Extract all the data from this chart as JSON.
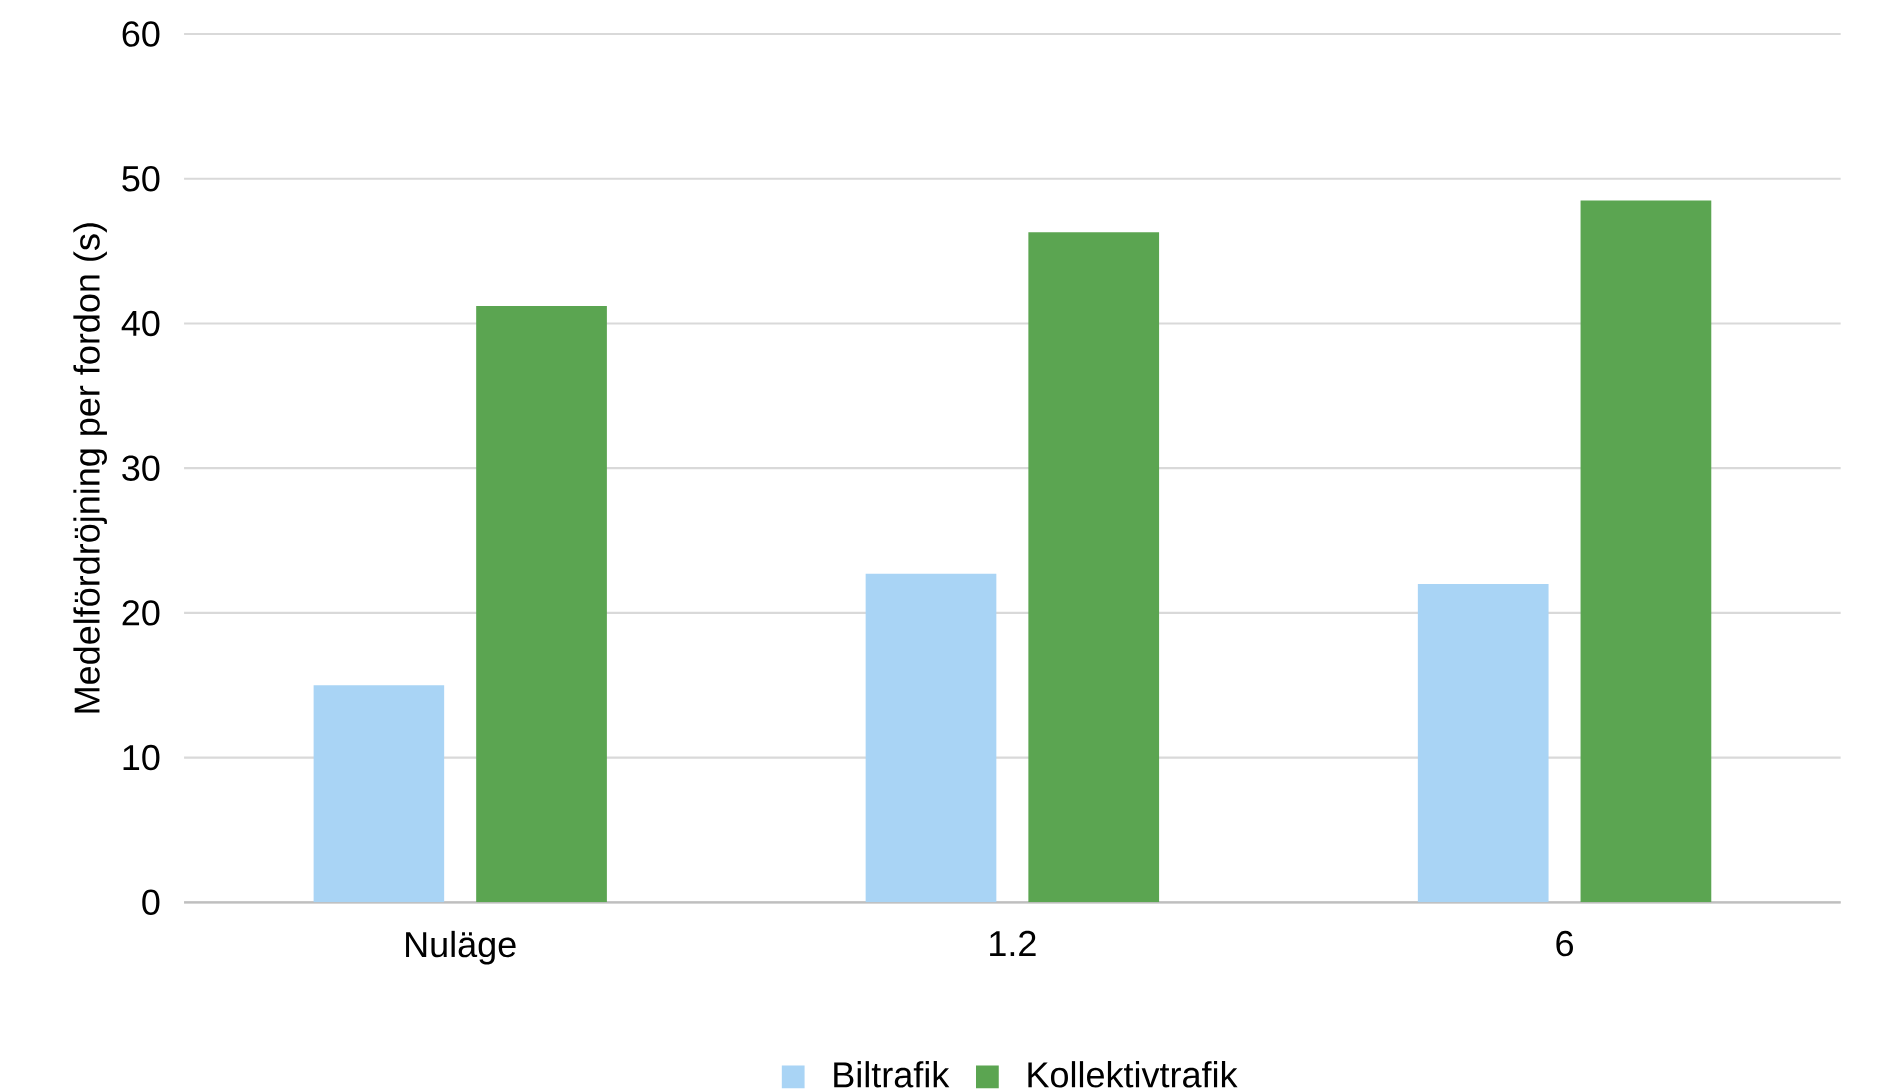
{
  "chart_data": {
    "type": "bar",
    "ylabel": "Medelfördröjning per fordon (s)",
    "categories": [
      "Nuläge",
      "1.2",
      "6"
    ],
    "series": [
      {
        "name": "Biltrafik",
        "color": "#a9d4f5",
        "values": [
          15.0,
          22.7,
          22.0
        ]
      },
      {
        "name": "Kollektivtrafik",
        "color": "#5ba551",
        "values": [
          41.2,
          46.3,
          48.5
        ]
      }
    ],
    "ylim": [
      0,
      60
    ],
    "yticks": [
      0,
      10,
      20,
      30,
      40,
      50,
      60
    ],
    "grid": "y",
    "legend": "bottom"
  }
}
